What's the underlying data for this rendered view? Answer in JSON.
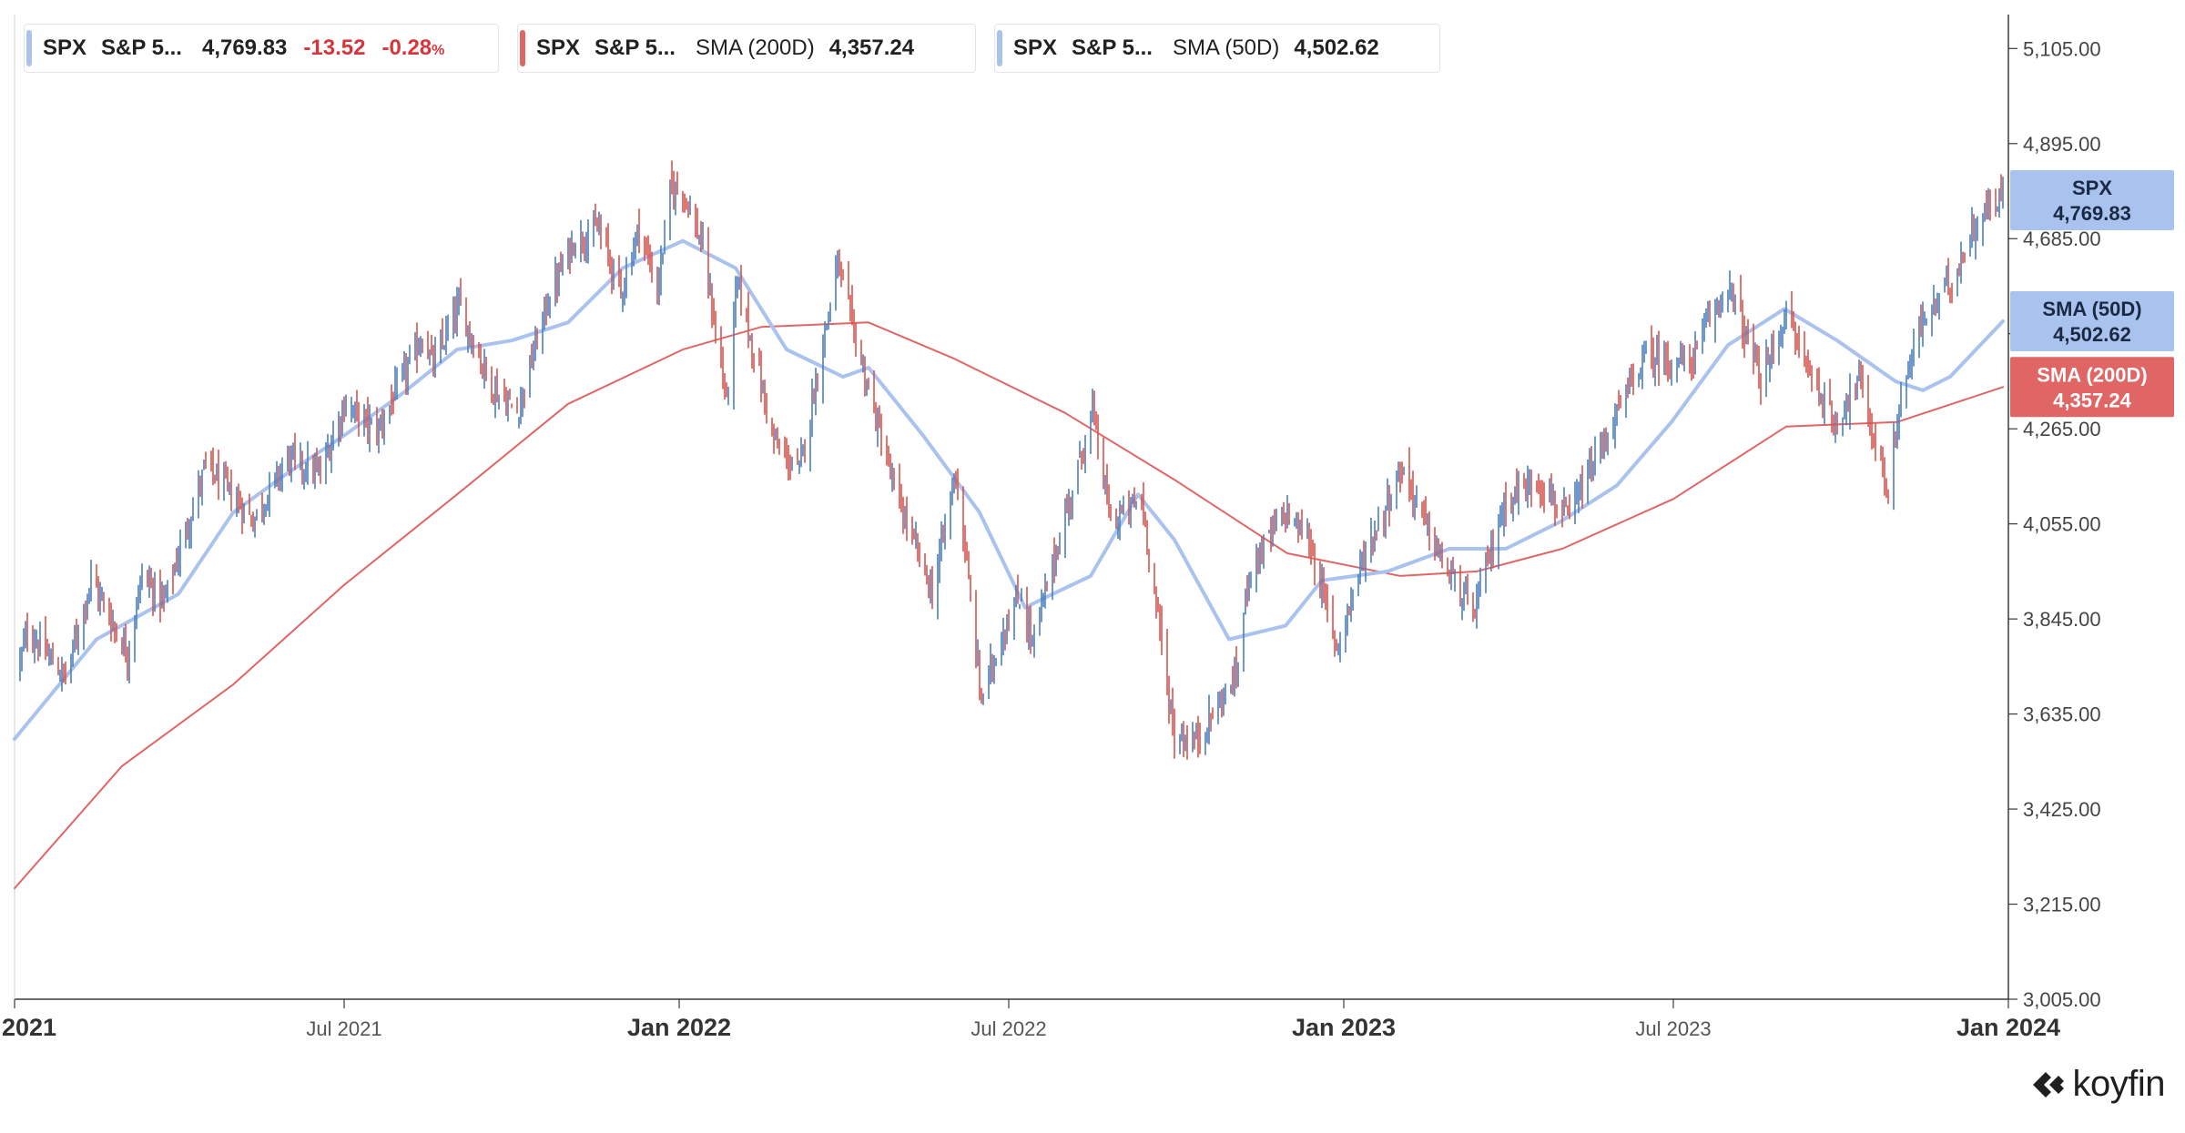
{
  "legend": [
    {
      "symbol": "SPX",
      "name": "S&P 5...",
      "indicator": "",
      "value": "4,769.83",
      "change": "-13.52",
      "change_pct": "-0.28",
      "pct_sign": "%",
      "color": "#a9c3ee"
    },
    {
      "symbol": "SPX",
      "name": "S&P 5...",
      "indicator": "SMA (200D)",
      "value": "4,357.24",
      "color": "#e06666"
    },
    {
      "symbol": "SPX",
      "name": "S&P 5...",
      "indicator": "SMA (50D)",
      "value": "4,502.62",
      "color": "#a9c3ee"
    }
  ],
  "price_tags": [
    {
      "label": "SPX",
      "value": "4,769.83",
      "bg": "#a9c3ee",
      "fg": "#1b2a44",
      "y": 4769.83
    },
    {
      "label": "SMA (50D)",
      "value": "4,502.62",
      "bg": "#a9c3ee",
      "fg": "#1b2a44",
      "y": 4502.62
    },
    {
      "label": "SMA (200D)",
      "value": "4,357.24",
      "bg": "#e06666",
      "fg": "#ffffff",
      "y": 4357.24
    }
  ],
  "brand": {
    "name": "koyfin"
  },
  "chart_data": {
    "type": "line",
    "y_axis_side": "right",
    "ylim": [
      3005,
      5180
    ],
    "xlim": [
      "2021-01-01",
      "2024-01-01"
    ],
    "y_ticks": [
      {
        "value": 5105,
        "label": "5,105.00"
      },
      {
        "value": 4895,
        "label": "4,895.00"
      },
      {
        "value": 4685,
        "label": "4,685.00"
      },
      {
        "value": 4475,
        "label": "4,475.00"
      },
      {
        "value": 4265,
        "label": "4,265.00"
      },
      {
        "value": 4055,
        "label": "4,055.00"
      },
      {
        "value": 3845,
        "label": "3,845.00"
      },
      {
        "value": 3635,
        "label": "3,635.00"
      },
      {
        "value": 3425,
        "label": "3,425.00"
      },
      {
        "value": 3215,
        "label": "3,215.00"
      },
      {
        "value": 3005,
        "label": "3,005.00"
      }
    ],
    "x_ticks": [
      {
        "date": "2021-01-01",
        "label": "2021",
        "major": true
      },
      {
        "date": "2021-07-01",
        "label": "Jul 2021",
        "major": false
      },
      {
        "date": "2022-01-01",
        "label": "Jan 2022",
        "major": true
      },
      {
        "date": "2022-07-01",
        "label": "Jul 2022",
        "major": false
      },
      {
        "date": "2023-01-01",
        "label": "Jan 2023",
        "major": true
      },
      {
        "date": "2023-07-01",
        "label": "Jul 2023",
        "major": false
      },
      {
        "date": "2024-01-01",
        "label": "Jan 2024",
        "major": true
      }
    ],
    "grid": false,
    "series": [
      {
        "name": "SPX",
        "kind": "ohlc",
        "up_color": "#4a7fc1",
        "down_color": "#d9544f",
        "anchors": [
          [
            "2021-01-04",
            3750
          ],
          [
            "2021-01-08",
            3820
          ],
          [
            "2021-01-29",
            3714
          ],
          [
            "2021-02-12",
            3934
          ],
          [
            "2021-03-04",
            3768
          ],
          [
            "2021-03-12",
            3943
          ],
          [
            "2021-03-24",
            3881
          ],
          [
            "2021-04-16",
            4185
          ],
          [
            "2021-05-12",
            4063
          ],
          [
            "2021-05-31",
            4200
          ],
          [
            "2021-06-18",
            4166
          ],
          [
            "2021-07-01",
            4320
          ],
          [
            "2021-07-19",
            4258
          ],
          [
            "2021-08-13",
            4468
          ],
          [
            "2021-08-19",
            4405
          ],
          [
            "2021-09-02",
            4537
          ],
          [
            "2021-09-20",
            4358
          ],
          [
            "2021-10-04",
            4300
          ],
          [
            "2021-10-21",
            4549
          ],
          [
            "2021-11-04",
            4680
          ],
          [
            "2021-11-18",
            4705
          ],
          [
            "2021-11-30",
            4567
          ],
          [
            "2021-12-10",
            4712
          ],
          [
            "2021-12-20",
            4568
          ],
          [
            "2021-12-27",
            4791
          ],
          [
            "2022-01-03",
            4796
          ],
          [
            "2022-01-14",
            4662
          ],
          [
            "2022-01-27",
            4326
          ],
          [
            "2022-02-02",
            4589
          ],
          [
            "2022-02-23",
            4225
          ],
          [
            "2022-03-08",
            4170
          ],
          [
            "2022-03-29",
            4631
          ],
          [
            "2022-04-11",
            4412
          ],
          [
            "2022-04-29",
            4132
          ],
          [
            "2022-05-20",
            3901
          ],
          [
            "2022-06-02",
            4176
          ],
          [
            "2022-06-16",
            3666
          ],
          [
            "2022-06-28",
            3821
          ],
          [
            "2022-07-08",
            3899
          ],
          [
            "2022-07-14",
            3790
          ],
          [
            "2022-08-16",
            4305
          ],
          [
            "2022-08-26",
            4057
          ],
          [
            "2022-09-12",
            4110
          ],
          [
            "2022-09-30",
            3585
          ],
          [
            "2022-10-12",
            3577
          ],
          [
            "2022-11-03",
            3719
          ],
          [
            "2022-11-10",
            3956
          ],
          [
            "2022-11-30",
            4080
          ],
          [
            "2022-12-13",
            4019
          ],
          [
            "2022-12-28",
            3783
          ],
          [
            "2023-01-12",
            3983
          ],
          [
            "2023-02-02",
            4179
          ],
          [
            "2023-02-24",
            3970
          ],
          [
            "2023-03-13",
            3855
          ],
          [
            "2023-03-31",
            4109
          ],
          [
            "2023-04-18",
            4154
          ],
          [
            "2023-05-04",
            4061
          ],
          [
            "2023-05-19",
            4192
          ],
          [
            "2023-06-15",
            4425
          ],
          [
            "2023-07-10",
            4409
          ],
          [
            "2023-07-31",
            4588
          ],
          [
            "2023-08-18",
            4369
          ],
          [
            "2023-09-01",
            4515
          ],
          [
            "2023-09-27",
            4274
          ],
          [
            "2023-10-11",
            4376
          ],
          [
            "2023-10-27",
            4117
          ],
          [
            "2023-11-02",
            4317
          ],
          [
            "2023-11-14",
            4495
          ],
          [
            "2023-12-01",
            4594
          ],
          [
            "2023-12-14",
            4719
          ],
          [
            "2023-12-22",
            4754
          ],
          [
            "2023-12-27",
            4781
          ],
          [
            "2023-12-29",
            4769.83
          ]
        ]
      },
      {
        "name": "SMA (50D)",
        "kind": "line",
        "color": "#a9c3ee",
        "width": 4,
        "points": [
          [
            "2021-01-01",
            3580
          ],
          [
            "2021-02-15",
            3800
          ],
          [
            "2021-04-01",
            3900
          ],
          [
            "2021-05-01",
            4080
          ],
          [
            "2021-06-01",
            4170
          ],
          [
            "2021-07-01",
            4250
          ],
          [
            "2021-08-01",
            4340
          ],
          [
            "2021-09-01",
            4440
          ],
          [
            "2021-10-01",
            4460
          ],
          [
            "2021-11-01",
            4500
          ],
          [
            "2021-12-01",
            4620
          ],
          [
            "2022-01-03",
            4680
          ],
          [
            "2022-02-01",
            4620
          ],
          [
            "2022-03-01",
            4440
          ],
          [
            "2022-04-01",
            4380
          ],
          [
            "2022-04-15",
            4400
          ],
          [
            "2022-05-15",
            4250
          ],
          [
            "2022-06-15",
            4080
          ],
          [
            "2022-07-10",
            3870
          ],
          [
            "2022-07-20",
            3890
          ],
          [
            "2022-08-15",
            3940
          ],
          [
            "2022-09-10",
            4120
          ],
          [
            "2022-09-30",
            4020
          ],
          [
            "2022-10-30",
            3800
          ],
          [
            "2022-11-30",
            3830
          ],
          [
            "2022-12-20",
            3930
          ],
          [
            "2023-01-25",
            3950
          ],
          [
            "2023-02-28",
            4000
          ],
          [
            "2023-03-31",
            4000
          ],
          [
            "2023-04-30",
            4060
          ],
          [
            "2023-05-31",
            4140
          ],
          [
            "2023-06-30",
            4280
          ],
          [
            "2023-07-31",
            4450
          ],
          [
            "2023-08-31",
            4530
          ],
          [
            "2023-09-29",
            4460
          ],
          [
            "2023-10-31",
            4370
          ],
          [
            "2023-11-15",
            4350
          ],
          [
            "2023-11-30",
            4380
          ],
          [
            "2023-12-29",
            4502.62
          ]
        ]
      },
      {
        "name": "SMA (200D)",
        "kind": "line",
        "color": "#e06666",
        "width": 2,
        "points": [
          [
            "2021-01-01",
            3250
          ],
          [
            "2021-03-01",
            3520
          ],
          [
            "2021-05-01",
            3700
          ],
          [
            "2021-07-01",
            3920
          ],
          [
            "2021-09-01",
            4120
          ],
          [
            "2021-11-01",
            4320
          ],
          [
            "2022-01-03",
            4440
          ],
          [
            "2022-02-15",
            4490
          ],
          [
            "2022-04-15",
            4500
          ],
          [
            "2022-06-01",
            4420
          ],
          [
            "2022-08-01",
            4300
          ],
          [
            "2022-10-01",
            4150
          ],
          [
            "2022-12-01",
            3990
          ],
          [
            "2023-02-01",
            3940
          ],
          [
            "2023-03-15",
            3950
          ],
          [
            "2023-05-01",
            4000
          ],
          [
            "2023-07-01",
            4110
          ],
          [
            "2023-09-01",
            4270
          ],
          [
            "2023-11-01",
            4280
          ],
          [
            "2023-12-29",
            4357.24
          ]
        ]
      }
    ]
  }
}
